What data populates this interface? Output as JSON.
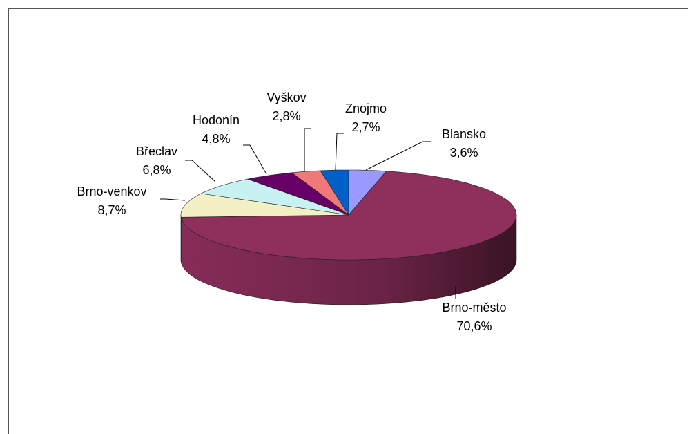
{
  "chart_data": {
    "type": "pie3d",
    "categories": [
      "Blansko",
      "Brno-město",
      "Brno-venkov",
      "Břeclav",
      "Hodonín",
      "Vyškov",
      "Znojmo"
    ],
    "values": [
      3.6,
      70.6,
      8.7,
      6.8,
      4.8,
      2.8,
      2.7
    ],
    "value_labels": [
      "3,6%",
      "70,6%",
      "8,7%",
      "6,8%",
      "4,8%",
      "2,8%",
      "2,7%"
    ],
    "colors": [
      "#9999ff",
      "#8e2f5c",
      "#f2f0c4",
      "#c8f2f2",
      "#660066",
      "#f07878",
      "#0060c8"
    ]
  }
}
